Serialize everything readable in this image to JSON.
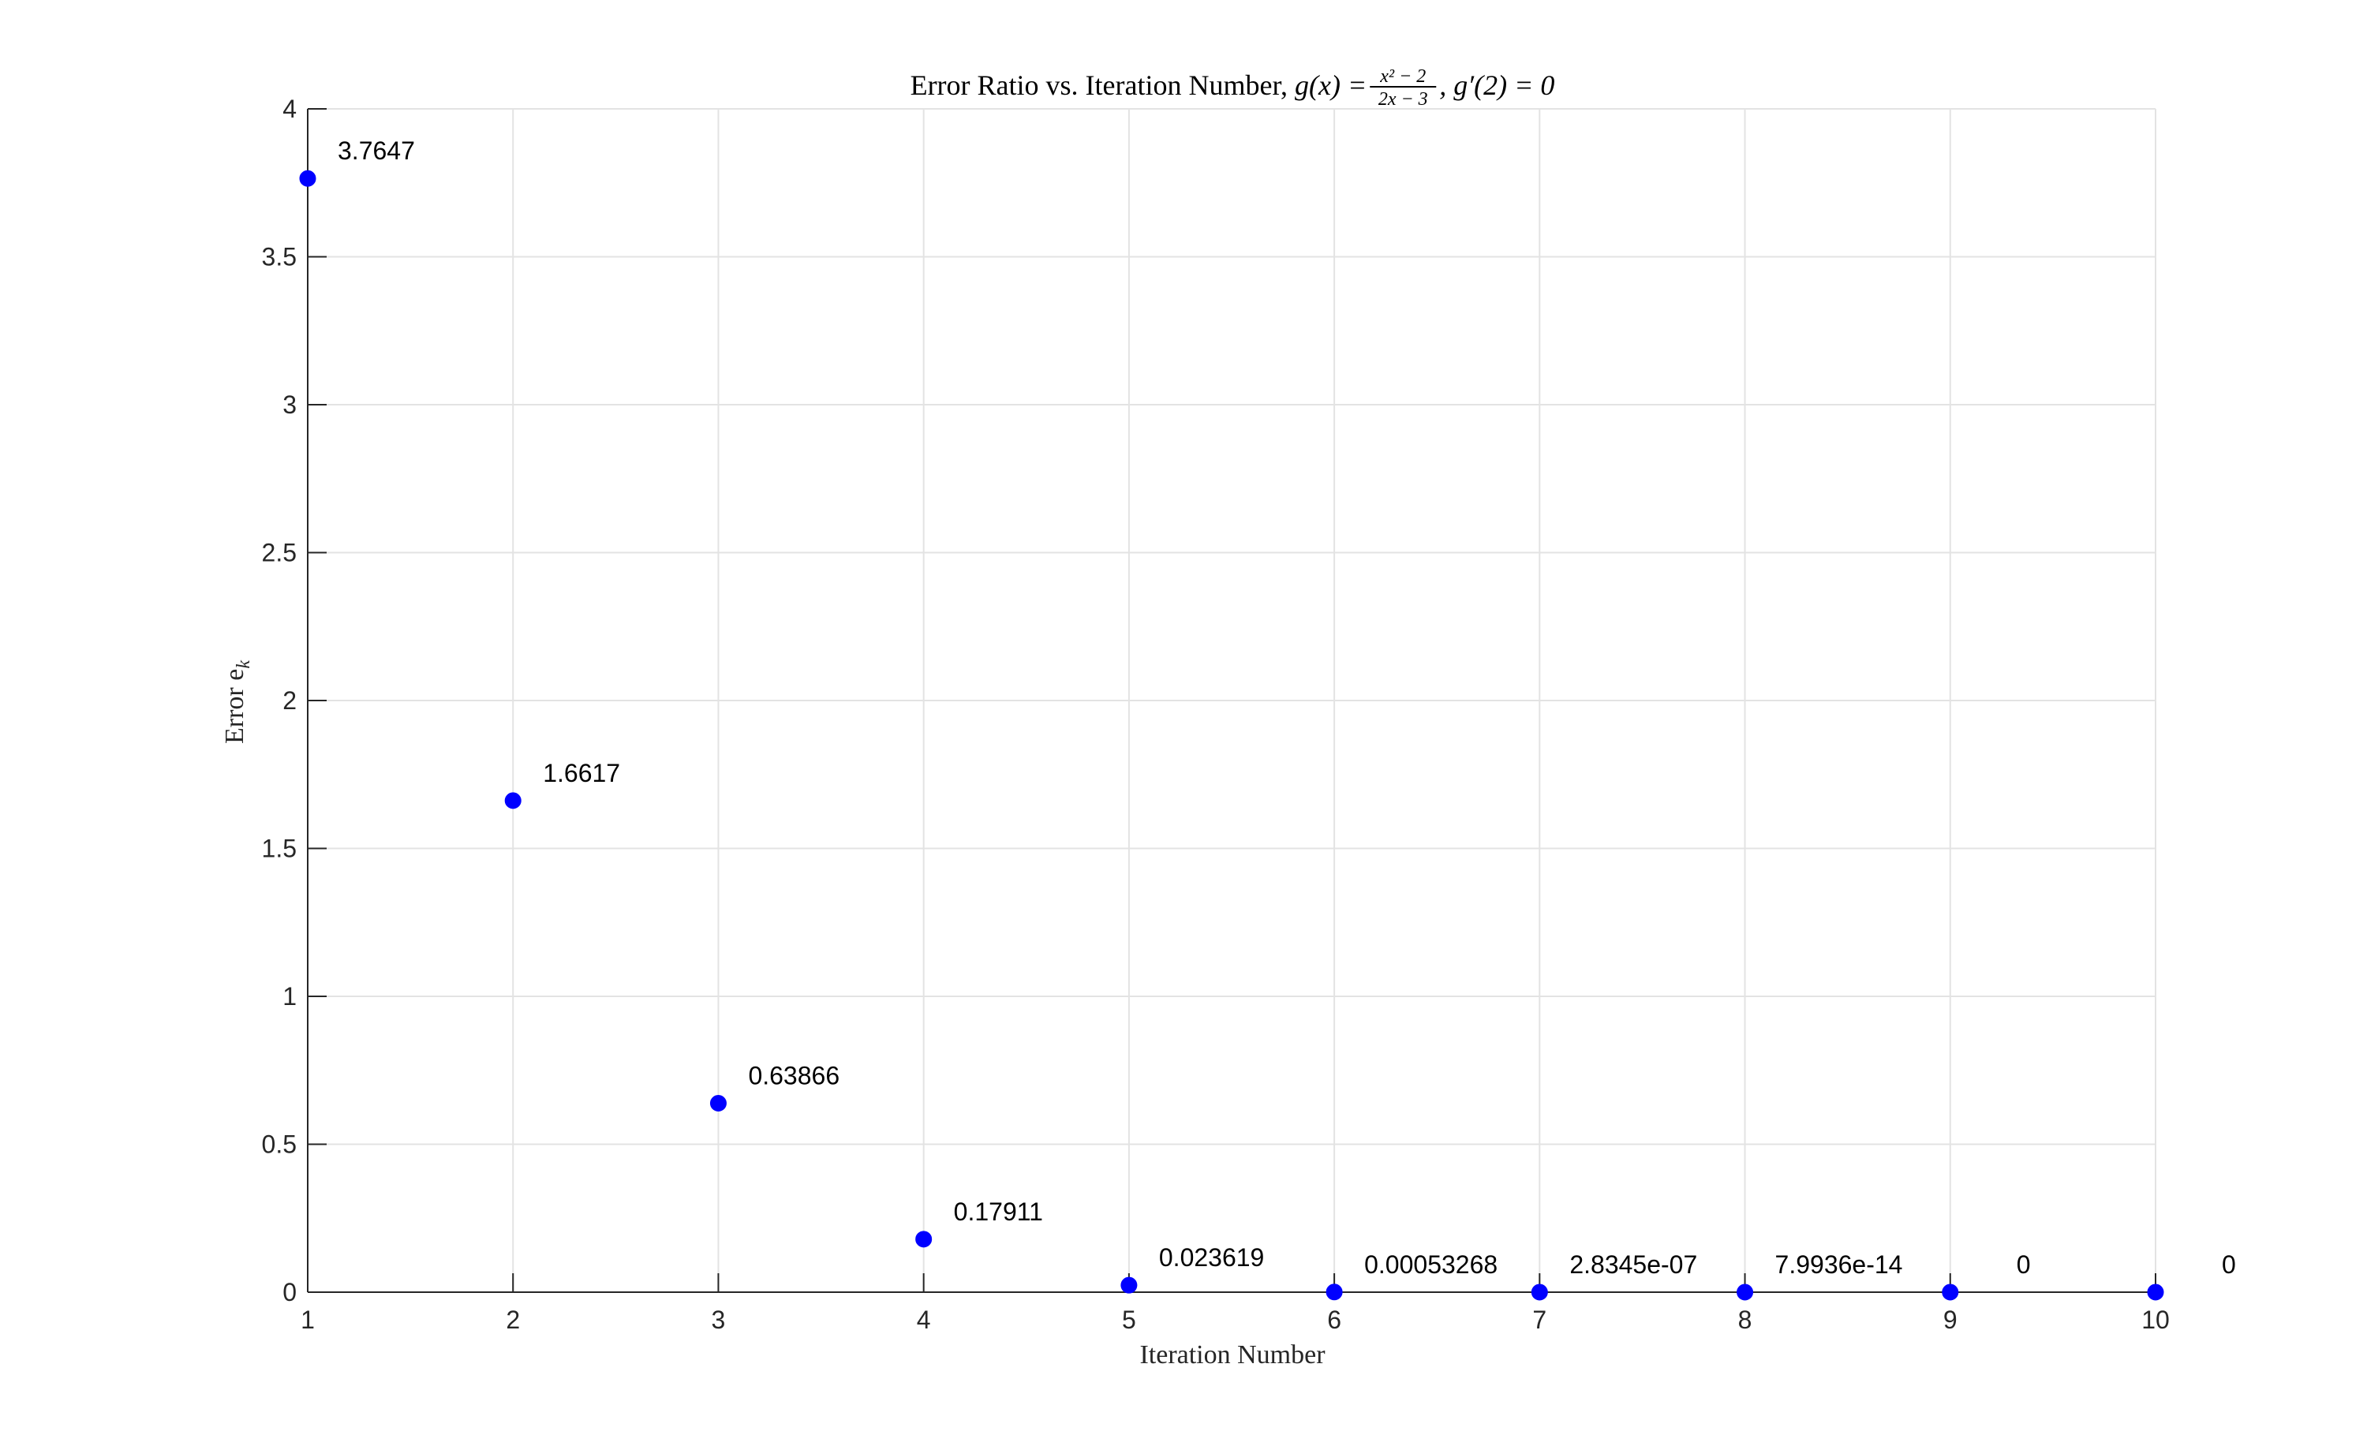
{
  "chart_data": {
    "type": "scatter",
    "title_parts": {
      "prefix": "Error Ratio vs. Iteration Number, ",
      "func": "g(x) = ",
      "num": "x² − 2",
      "den": "2x − 3",
      "suffix": ", g′(2) = 0"
    },
    "xlabel": "Iteration Number",
    "ylabel": "Error e",
    "ylabel_sub": "k",
    "xlim": [
      1,
      10
    ],
    "ylim": [
      0,
      4
    ],
    "xticks": [
      1,
      2,
      3,
      4,
      5,
      6,
      7,
      8,
      9,
      10
    ],
    "yticks": [
      0,
      0.5,
      1,
      1.5,
      2,
      2.5,
      3,
      3.5,
      4
    ],
    "grid": true,
    "marker_color": "#0000ff",
    "x": [
      1,
      2,
      3,
      4,
      5,
      6,
      7,
      8,
      9,
      10
    ],
    "y": [
      3.7647,
      1.6617,
      0.63866,
      0.17911,
      0.023619,
      0.00053268,
      2.8345e-07,
      7.9936e-14,
      0,
      0
    ],
    "point_labels": [
      "3.7647",
      "1.6617",
      "0.63866",
      "0.17911",
      "0.023619",
      "0.00053268",
      "2.8345e-07",
      "7.9936e-14",
      "0",
      "0"
    ]
  }
}
